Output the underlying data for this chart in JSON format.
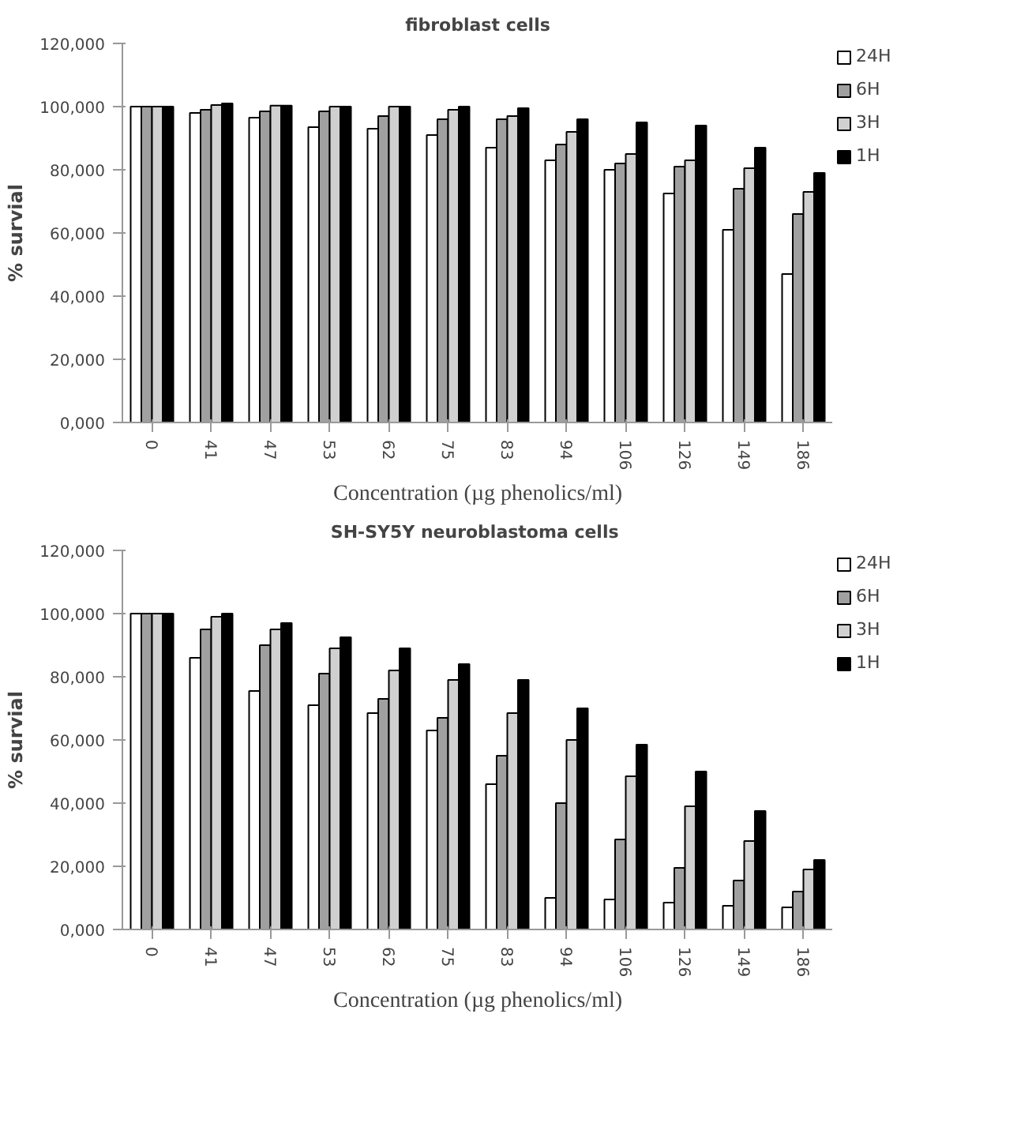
{
  "chart_data": [
    {
      "type": "bar",
      "title": "fibroblast cells",
      "xlabel": "Concentration (µg phenolics/ml)",
      "ylabel": "% survial",
      "categories": [
        "0",
        "41",
        "47",
        "53",
        "62",
        "75",
        "83",
        "94",
        "106",
        "126",
        "149",
        "186"
      ],
      "ylim": [
        0,
        120
      ],
      "yticks": [
        {
          "value": 0,
          "label": "0,000"
        },
        {
          "value": 20,
          "label": "20,000"
        },
        {
          "value": 40,
          "label": "40,000"
        },
        {
          "value": 60,
          "label": "60,000"
        },
        {
          "value": 80,
          "label": "80,000"
        },
        {
          "value": 100,
          "label": "100,000"
        },
        {
          "value": 120,
          "label": "120,000"
        }
      ],
      "legend": "right",
      "grid": false,
      "series": [
        {
          "name": "24H",
          "color": "#ffffff",
          "values": [
            100,
            98,
            96.5,
            93.5,
            93,
            91,
            87,
            83,
            80,
            72.5,
            61,
            47
          ]
        },
        {
          "name": "6H",
          "color": "#a0a0a0",
          "values": [
            100,
            99,
            98.5,
            98.5,
            97,
            96,
            96,
            88,
            82,
            81,
            74,
            66
          ]
        },
        {
          "name": "3H",
          "color": "#d0d0d0",
          "values": [
            100,
            100.5,
            100.3,
            100,
            100,
            99,
            97,
            92,
            85,
            83,
            80.5,
            73
          ]
        },
        {
          "name": "1H",
          "color": "#000000",
          "values": [
            100,
            101,
            100.3,
            100,
            100,
            100,
            99.5,
            96,
            95,
            94,
            87,
            79
          ]
        }
      ]
    },
    {
      "type": "bar",
      "title": "SH-SY5Y neuroblastoma  cells",
      "xlabel": "Concentration (µg phenolics/ml)",
      "ylabel": "% survial",
      "categories": [
        "0",
        "41",
        "47",
        "53",
        "62",
        "75",
        "83",
        "94",
        "106",
        "126",
        "149",
        "186"
      ],
      "ylim": [
        0,
        120
      ],
      "yticks": [
        {
          "value": 0,
          "label": "0,000"
        },
        {
          "value": 20,
          "label": "20,000"
        },
        {
          "value": 40,
          "label": "40,000"
        },
        {
          "value": 60,
          "label": "60,000"
        },
        {
          "value": 80,
          "label": "80,000"
        },
        {
          "value": 100,
          "label": "100,000"
        },
        {
          "value": 120,
          "label": "120,000"
        }
      ],
      "legend": "right",
      "grid": false,
      "series": [
        {
          "name": "24H",
          "color": "#ffffff",
          "values": [
            100,
            86,
            75.5,
            71,
            68.5,
            63,
            46,
            10,
            9.5,
            8.5,
            7.5,
            7
          ]
        },
        {
          "name": "6H",
          "color": "#a0a0a0",
          "values": [
            100,
            95,
            90,
            81,
            73,
            67,
            55,
            40,
            28.5,
            19.5,
            15.5,
            12
          ]
        },
        {
          "name": "3H",
          "color": "#d0d0d0",
          "values": [
            100,
            99,
            95,
            89,
            82,
            79,
            68.5,
            60,
            48.5,
            39,
            28,
            19
          ]
        },
        {
          "name": "1H",
          "color": "#000000",
          "values": [
            100,
            100,
            97,
            92.5,
            89,
            84,
            79,
            70,
            58.5,
            50,
            37.5,
            22
          ]
        }
      ]
    }
  ]
}
